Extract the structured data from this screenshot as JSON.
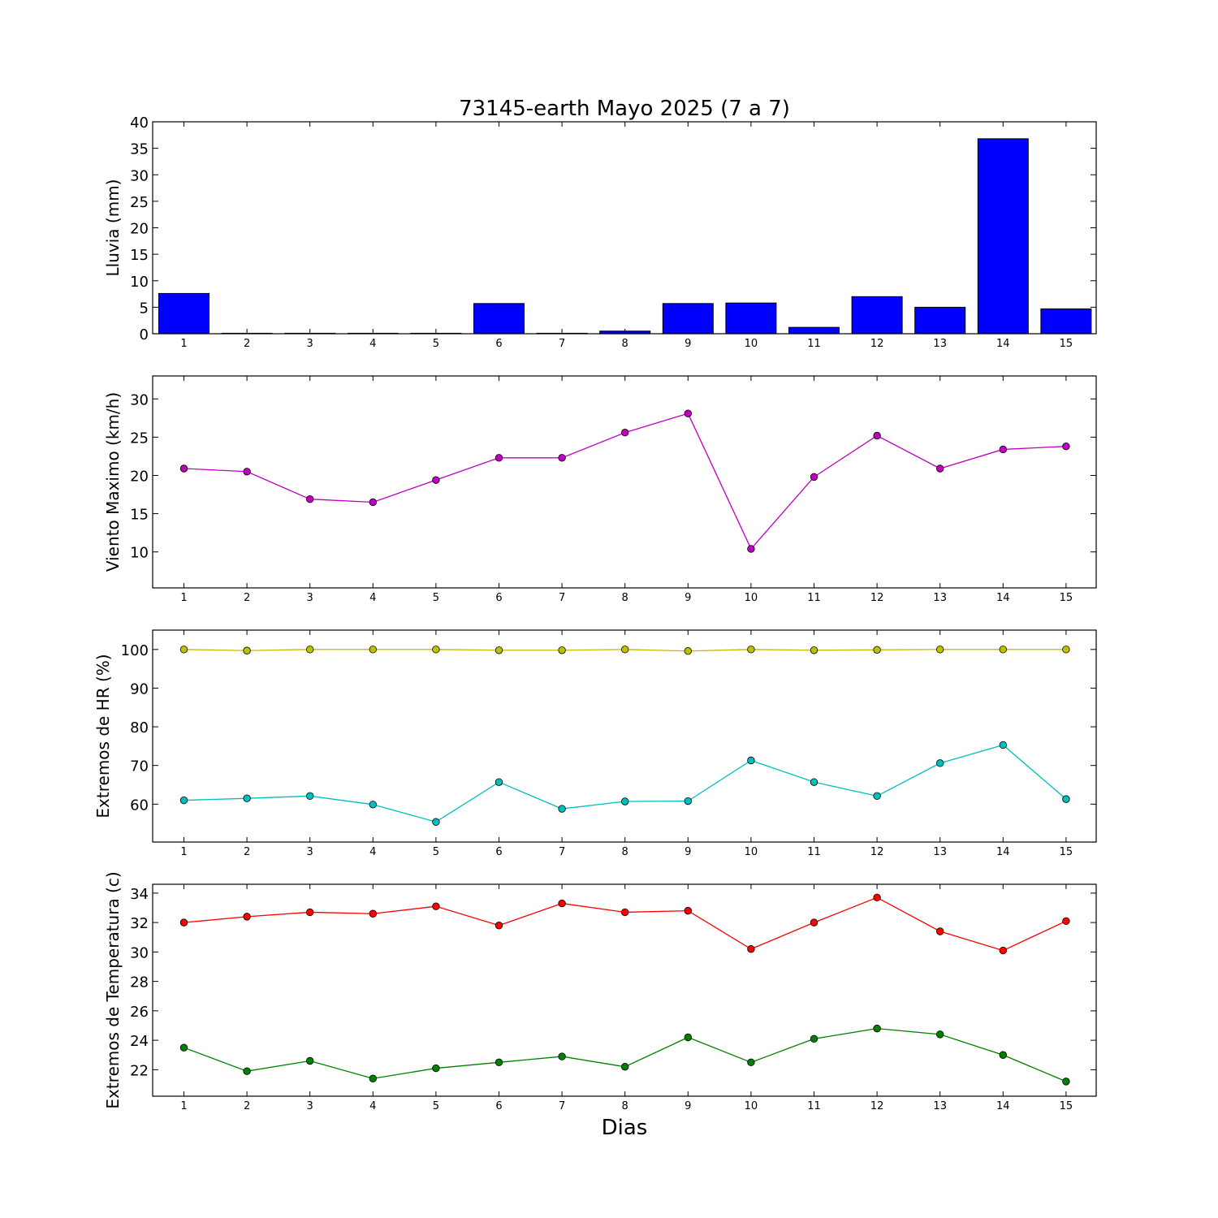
{
  "chart_data": {
    "title": "73145-earth Mayo 2025  (7 a 7)",
    "xlabel": "Dias",
    "days": [
      1,
      2,
      3,
      4,
      5,
      6,
      7,
      8,
      9,
      10,
      11,
      12,
      13,
      14,
      15
    ],
    "panels": [
      {
        "id": "rain",
        "type": "bar",
        "ylabel": "Lluvia (mm)",
        "ylim": [
          0,
          40
        ],
        "yticks": [
          0,
          5,
          10,
          15,
          20,
          25,
          30,
          35,
          40
        ],
        "series": [
          {
            "color": "#0000ff",
            "values": [
              7.6,
              0,
              0,
              0,
              0,
              5.7,
              0,
              0.5,
              5.7,
              5.8,
              1.2,
              7.0,
              5.0,
              36.8,
              4.7
            ]
          }
        ]
      },
      {
        "id": "wind",
        "type": "line",
        "ylabel": "Viento Maximo (km/h)",
        "ylim": [
          5.3,
          33
        ],
        "yticks": [
          10,
          15,
          20,
          25,
          30
        ],
        "series": [
          {
            "color": "#bf00bf",
            "values": [
              20.9,
              20.5,
              16.9,
              16.5,
              19.4,
              22.3,
              22.3,
              25.6,
              28.1,
              10.4,
              19.8,
              25.2,
              20.9,
              23.4,
              23.8
            ]
          }
        ]
      },
      {
        "id": "humidity",
        "type": "line",
        "ylabel": "Extremos de HR (%)",
        "ylim": [
          50.2,
          105
        ],
        "yticks": [
          60,
          70,
          80,
          90,
          100
        ],
        "series": [
          {
            "color": "#bfbf00",
            "values": [
              100,
              99.7,
              100,
              100,
              100,
              99.8,
              99.8,
              100,
              99.6,
              100,
              99.8,
              99.9,
              100,
              100,
              100
            ]
          },
          {
            "color": "#00bfbf",
            "values": [
              61.0,
              61.5,
              62.1,
              59.9,
              55.4,
              65.7,
              58.8,
              60.7,
              60.8,
              71.3,
              65.7,
              62.1,
              70.6,
              75.3,
              61.3
            ]
          }
        ]
      },
      {
        "id": "temperature",
        "type": "line",
        "ylabel": "Extremos de Temperatura (c)",
        "ylim": [
          20.2,
          34.6
        ],
        "yticks": [
          22,
          24,
          26,
          28,
          30,
          32,
          34
        ],
        "series": [
          {
            "color": "#ff0000",
            "values": [
              32.0,
              32.4,
              32.7,
              32.6,
              33.1,
              31.8,
              33.3,
              32.7,
              32.8,
              30.2,
              32.0,
              33.7,
              31.4,
              30.1,
              32.1
            ]
          },
          {
            "color": "#008000",
            "values": [
              23.5,
              21.9,
              22.6,
              21.4,
              22.1,
              22.5,
              22.9,
              22.2,
              24.2,
              22.5,
              24.1,
              24.8,
              24.4,
              23.0,
              21.2
            ]
          }
        ]
      }
    ]
  }
}
